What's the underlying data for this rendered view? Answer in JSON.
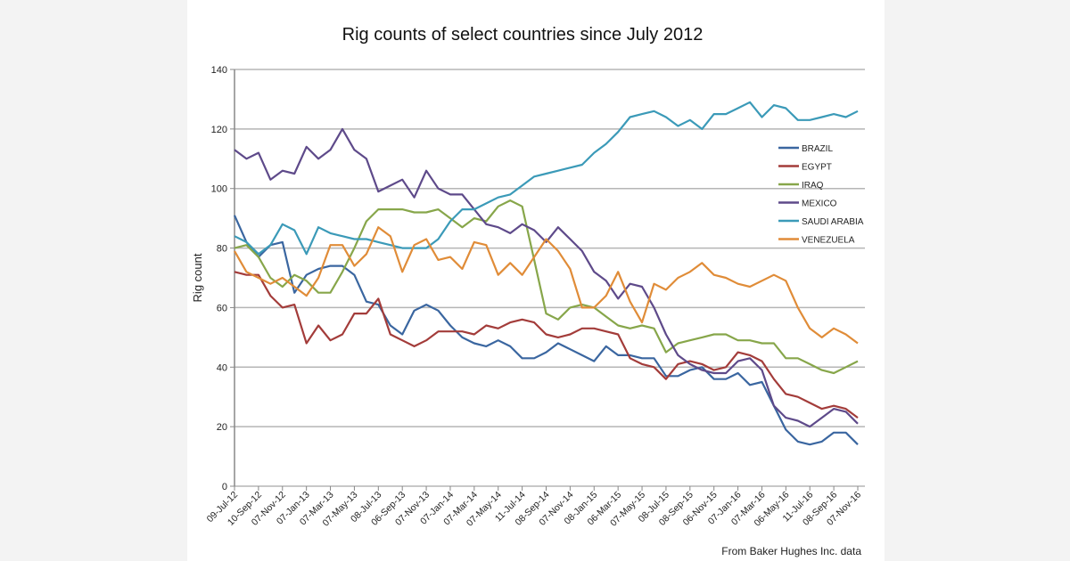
{
  "chart_data": {
    "type": "line",
    "title": "Rig counts of select countries since July 2012",
    "xlabel": "",
    "ylabel": "Rig count",
    "source": "From Baker Hughes Inc. data",
    "ylim": [
      0,
      140
    ],
    "yticks": [
      0,
      20,
      40,
      60,
      80,
      100,
      120,
      140
    ],
    "grid": true,
    "legend": "right",
    "x_tick_labels": [
      "09-Jul-12",
      "10-Sep-12",
      "07-Nov-12",
      "07-Jan-13",
      "07-Mar-13",
      "07-May-13",
      "08-Jul-13",
      "06-Sep-13",
      "07-Nov-13",
      "07-Jan-14",
      "07-Mar-14",
      "07-May-14",
      "11-Jul-14",
      "08-Sep-14",
      "07-Nov-14",
      "08-Jan-15",
      "06-Mar-15",
      "07-May-15",
      "08-Jul-15",
      "08-Sep-15",
      "06-Nov-15",
      "07-Jan-16",
      "07-Mar-16",
      "06-May-16",
      "11-Jul-16",
      "08-Sep-16",
      "07-Nov-16"
    ],
    "series": [
      {
        "name": "BRAZIL",
        "color": "#3a66a0",
        "values": [
          91,
          82,
          77,
          81,
          82,
          65,
          71,
          73,
          74,
          74,
          71,
          62,
          61,
          54,
          51,
          59,
          61,
          59,
          54,
          50,
          48,
          47,
          49,
          47,
          43,
          43,
          45,
          48,
          46,
          44,
          42,
          47,
          44,
          44,
          43,
          43,
          37,
          37,
          39,
          40,
          36,
          36,
          38,
          34,
          35,
          27,
          19,
          15,
          14,
          15,
          18,
          18,
          14
        ]
      },
      {
        "name": "EGYPT",
        "color": "#a33c3a",
        "values": [
          72,
          71,
          71,
          64,
          60,
          61,
          48,
          54,
          49,
          51,
          58,
          58,
          63,
          51,
          49,
          47,
          49,
          52,
          52,
          52,
          51,
          54,
          53,
          55,
          56,
          55,
          51,
          50,
          51,
          53,
          53,
          52,
          51,
          43,
          41,
          40,
          36,
          41,
          42,
          41,
          39,
          40,
          45,
          44,
          42,
          36,
          31,
          30,
          28,
          26,
          27,
          26,
          23
        ]
      },
      {
        "name": "IRAQ",
        "color": "#87a64a",
        "values": [
          80,
          81,
          77,
          70,
          67,
          71,
          69,
          65,
          65,
          72,
          80,
          89,
          93,
          93,
          93,
          92,
          92,
          93,
          90,
          87,
          90,
          89,
          94,
          96,
          94,
          76,
          58,
          56,
          60,
          61,
          60,
          57,
          54,
          53,
          54,
          53,
          45,
          48,
          49,
          50,
          51,
          51,
          49,
          49,
          48,
          48,
          43,
          43,
          41,
          39,
          38,
          40,
          42
        ]
      },
      {
        "name": "MEXICO",
        "color": "#5e4a8a",
        "values": [
          113,
          110,
          112,
          103,
          106,
          105,
          114,
          110,
          113,
          120,
          113,
          110,
          99,
          101,
          103,
          97,
          106,
          100,
          98,
          98,
          93,
          88,
          87,
          85,
          88,
          86,
          82,
          87,
          83,
          79,
          72,
          69,
          63,
          68,
          67,
          60,
          51,
          44,
          41,
          39,
          38,
          38,
          42,
          43,
          39,
          27,
          23,
          22,
          20,
          23,
          26,
          25,
          21
        ]
      },
      {
        "name": "SAUDI ARABIA",
        "color": "#3b9ab8",
        "values": [
          84,
          82,
          78,
          81,
          88,
          86,
          78,
          87,
          85,
          84,
          83,
          83,
          82,
          81,
          80,
          80,
          80,
          83,
          89,
          93,
          93,
          95,
          97,
          98,
          101,
          104,
          105,
          106,
          107,
          108,
          112,
          115,
          119,
          124,
          125,
          126,
          124,
          121,
          123,
          120,
          125,
          125,
          127,
          129,
          124,
          128,
          127,
          123,
          123,
          124,
          125,
          124,
          126
        ]
      },
      {
        "name": "VENEZUELA",
        "color": "#e08c38",
        "values": [
          79,
          72,
          70,
          68,
          70,
          67,
          64,
          70,
          81,
          81,
          74,
          78,
          87,
          84,
          72,
          81,
          83,
          76,
          77,
          73,
          82,
          81,
          71,
          75,
          71,
          77,
          83,
          79,
          73,
          60,
          60,
          64,
          72,
          62,
          55,
          68,
          66,
          70,
          72,
          75,
          71,
          70,
          68,
          67,
          69,
          71,
          69,
          60,
          53,
          50,
          53,
          51,
          48
        ]
      }
    ]
  }
}
